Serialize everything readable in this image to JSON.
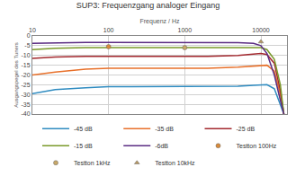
{
  "chart_data": {
    "type": "line",
    "title": "SUP3: Frequenzgang analoger Eingang",
    "x_label": "Frequenz / Hz",
    "y_label": "Ausgangspegel des Tuners",
    "log": "x",
    "grid": true,
    "legend": "bottom",
    "xlim": [
      10,
      22000
    ],
    "xticks": [
      10,
      100,
      1000,
      10000
    ],
    "ylim": [
      -40,
      0
    ],
    "yticks": [
      -40,
      -35,
      -30,
      -25,
      -20,
      -15,
      -10,
      -5,
      0
    ],
    "x": [
      10,
      20,
      50,
      100,
      200,
      500,
      1000,
      2000,
      5000,
      8000,
      10000,
      12000,
      15000,
      18000,
      20000
    ],
    "series": [
      {
        "name": "-45 dB",
        "color": "#2e8bc0",
        "type": "line",
        "line_style": "solid",
        "values": [
          -29.5,
          -27.5,
          -26.5,
          -26,
          -26,
          -26,
          -26,
          -26,
          -25.8,
          -25.3,
          -25,
          -25,
          -27,
          -35,
          -40
        ]
      },
      {
        "name": "-35 dB",
        "color": "#e8702a",
        "type": "line",
        "line_style": "solid",
        "values": [
          -20,
          -18.5,
          -17,
          -16.5,
          -16.5,
          -16.5,
          -16.5,
          -16.5,
          -16,
          -15.3,
          -15,
          -15,
          -18,
          -30,
          -40
        ]
      },
      {
        "name": "-25 dB",
        "color": "#a3282e",
        "type": "line",
        "line_style": "solid",
        "values": [
          -11.5,
          -10.8,
          -10.5,
          -10.5,
          -10.5,
          -10.5,
          -10.5,
          -10.5,
          -10,
          -9.3,
          -9,
          -9.5,
          -14,
          -28,
          -40
        ]
      },
      {
        "name": "-15 dB",
        "color": "#7a9a2a",
        "type": "line",
        "line_style": "solid",
        "values": [
          -7,
          -6.3,
          -6,
          -6,
          -6,
          -6,
          -6,
          -6,
          -6,
          -6,
          -6,
          -7,
          -12,
          -25,
          -40
        ]
      },
      {
        "name": "-6dB",
        "color": "#5b2c83",
        "type": "line",
        "line_style": "solid",
        "values": [
          -3.8,
          -3.5,
          -3.3,
          -3.3,
          -3.3,
          -3.3,
          -3.3,
          -3.3,
          -3.4,
          -3.8,
          -5,
          -9,
          -20,
          -33,
          -40
        ]
      },
      {
        "name": "Testton 100Hz",
        "color": "#d98a3a",
        "type": "scatter",
        "marker": "circle",
        "x": [
          100
        ],
        "values": [
          -5.5
        ]
      },
      {
        "name": "Testton 1kHz",
        "color": "#c8a868",
        "type": "scatter",
        "marker": "circle",
        "x": [
          1000
        ],
        "values": [
          -6
        ]
      },
      {
        "name": "Testton 10kHz",
        "color": "#b89860",
        "type": "scatter",
        "marker": "triangle-up",
        "x": [
          10000
        ],
        "values": [
          -3
        ]
      }
    ]
  }
}
